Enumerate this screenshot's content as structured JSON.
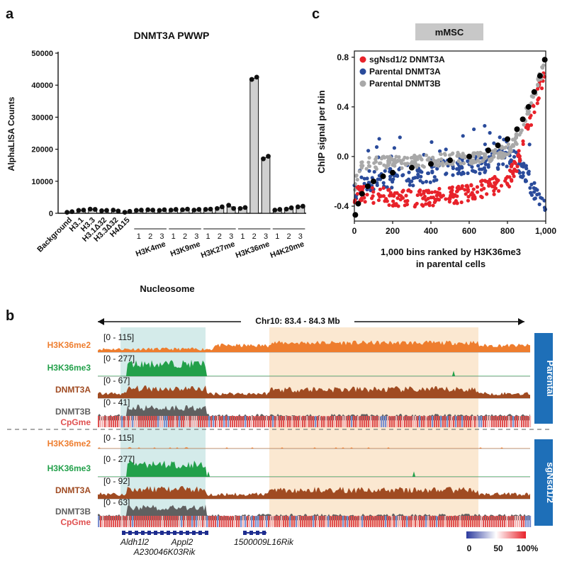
{
  "panel_labels": {
    "a": "a",
    "b": "b",
    "c": "c"
  },
  "chart_data": [
    {
      "type": "bar",
      "id": "panel-a",
      "title": "DNMT3A PWWP",
      "ylabel": "AlphaLISA Counts",
      "xlabel": "Nucleosome",
      "ylim": [
        0,
        50000
      ],
      "yticks": [
        0,
        10000,
        20000,
        30000,
        40000,
        50000
      ],
      "ytick_labels": [
        "0",
        "10000",
        "20000",
        "30000",
        "40000",
        "50000"
      ],
      "single_categories": [
        "Background",
        "H3.1",
        "H3.3",
        "H3.1Δ32",
        "H3.3Δ32",
        "H4Δ15"
      ],
      "groups": [
        {
          "name": "H3K4me",
          "sublabels": [
            "1",
            "2",
            "3"
          ]
        },
        {
          "name": "H3K9me",
          "sublabels": [
            "1",
            "2",
            "3"
          ]
        },
        {
          "name": "H3K27me",
          "sublabels": [
            "1",
            "2",
            "3"
          ]
        },
        {
          "name": "H3K36me",
          "sublabels": [
            "1",
            "2",
            "3"
          ]
        },
        {
          "name": "H4K20me",
          "sublabels": [
            "1",
            "2",
            "3"
          ]
        }
      ],
      "replicates": [
        [
          300,
          500
        ],
        [
          900,
          1000
        ],
        [
          1300,
          1200
        ],
        [
          800,
          900
        ],
        [
          1000,
          700
        ],
        [
          300,
          600
        ],
        [
          900,
          1000
        ],
        [
          1100,
          1000
        ],
        [
          900,
          1100
        ],
        [
          1000,
          1200
        ],
        [
          1100,
          1300
        ],
        [
          1000,
          1200
        ],
        [
          1200,
          1300
        ],
        [
          1500,
          2000
        ],
        [
          2500,
          1500
        ],
        [
          1500,
          1800
        ],
        [
          41800,
          42500
        ],
        [
          17000,
          17800
        ],
        [
          1000,
          1200
        ],
        [
          1300,
          1700
        ],
        [
          2000,
          2200
        ]
      ]
    },
    {
      "type": "scatter",
      "id": "panel-c",
      "title": "mMSC",
      "ylabel": "ChIP signal per bin",
      "xlabel": "1,000 bins ranked by H3K36me3",
      "xlabel2": "in parental cells",
      "xlim": [
        0,
        1000
      ],
      "ylim": [
        -0.52,
        0.85
      ],
      "xticks": [
        0,
        200,
        400,
        600,
        800,
        1000
      ],
      "xtick_labels": [
        "0",
        "200",
        "400",
        "600",
        "800",
        "1,000"
      ],
      "yticks": [
        -0.4,
        0.0,
        0.4,
        0.8
      ],
      "ytick_labels": [
        "-0.4",
        "0.0",
        "0.4",
        "0.8"
      ],
      "series": [
        {
          "name": "sgNsd1/2 DNMT3A",
          "color": "#e8222a",
          "trend_x": [
            0,
            20,
            60,
            150,
            300,
            500,
            700,
            800,
            850,
            900,
            950,
            1000
          ],
          "trend_y": [
            -0.35,
            -0.3,
            -0.3,
            -0.32,
            -0.34,
            -0.32,
            -0.25,
            -0.2,
            -0.05,
            0.2,
            0.45,
            0.72
          ],
          "spread": 0.07
        },
        {
          "name": "Parental DNMT3A",
          "color": "#2a4b9b",
          "trend_x": [
            0,
            20,
            60,
            150,
            300,
            500,
            700,
            800,
            850,
            900,
            950,
            1000
          ],
          "trend_y": [
            -0.3,
            -0.25,
            -0.2,
            -0.18,
            -0.16,
            -0.1,
            -0.05,
            0.0,
            -0.05,
            -0.15,
            -0.3,
            -0.45
          ],
          "spread": 0.08
        },
        {
          "name": "Parental DNMT3B",
          "color": "#a8a8a8",
          "trend_x": [
            0,
            20,
            60,
            150,
            300,
            500,
            700,
            800,
            850,
            900,
            950,
            1000
          ],
          "trend_y": [
            -0.3,
            -0.1,
            -0.06,
            -0.05,
            -0.04,
            -0.02,
            0.0,
            0.05,
            0.15,
            0.35,
            0.55,
            0.75
          ],
          "spread": 0.05
        }
      ],
      "mean_trend": {
        "color": "#000000",
        "x": [
          5,
          20,
          40,
          70,
          100,
          150,
          200,
          300,
          400,
          500,
          600,
          700,
          750,
          800,
          850,
          880,
          910,
          940,
          970,
          995
        ],
        "y": [
          -0.47,
          -0.38,
          -0.3,
          -0.24,
          -0.2,
          -0.16,
          -0.13,
          -0.09,
          -0.06,
          -0.03,
          0.0,
          0.05,
          0.09,
          0.14,
          0.22,
          0.3,
          0.4,
          0.52,
          0.65,
          0.78
        ]
      }
    },
    {
      "type": "genome-tracks",
      "id": "panel-b",
      "region_label": "Chr10: 83.4 - 84.3 Mb",
      "conditions": [
        "Parental",
        "sgNsd1/2"
      ],
      "tracks": [
        {
          "label": "H3K36me2",
          "range": "[0 - 115]",
          "color": "#ee7d2e",
          "condition": "Parental"
        },
        {
          "label": "H3K36me3",
          "range": "[0 - 277]",
          "color": "#22a04a",
          "condition": "Parental"
        },
        {
          "label": "DNMT3A",
          "range": "[0 - 67]",
          "color": "#a04b22",
          "condition": "Parental"
        },
        {
          "label": "DNMT3B",
          "range": "[0 - 41]",
          "color": "#606060",
          "condition": "Parental"
        },
        {
          "label": "CpGme",
          "range": "",
          "color": "#e05050",
          "condition": "Parental"
        },
        {
          "label": "H3K36me2",
          "range": "[0 - 115]",
          "color": "#ee7d2e",
          "condition": "sgNsd1/2"
        },
        {
          "label": "H3K36me3",
          "range": "[0 - 277]",
          "color": "#22a04a",
          "condition": "sgNsd1/2"
        },
        {
          "label": "DNMT3A",
          "range": "[0 - 92]",
          "color": "#a04b22",
          "condition": "sgNsd1/2"
        },
        {
          "label": "DNMT3B",
          "range": "[0 - 63]",
          "color": "#606060",
          "condition": "sgNsd1/2"
        },
        {
          "label": "CpGme",
          "range": "",
          "color": "#e05050",
          "condition": "sgNsd1/2"
        }
      ],
      "genes": [
        "Aldh1l2",
        "Appl2",
        "A230046K03Rik",
        "1500009L16Rik"
      ],
      "colorbar_labels": [
        "0",
        "50",
        "100%"
      ],
      "colorbar_colors": [
        "#2b3a9e",
        "#ffffff",
        "#e8222a"
      ]
    }
  ]
}
